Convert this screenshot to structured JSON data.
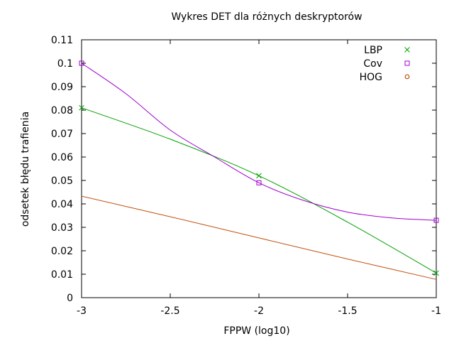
{
  "chart_data": {
    "type": "line",
    "title": "Wykres DET dla różnych deskryptorów",
    "xlabel": "FPPW (log10)",
    "ylabel": "odsetek błędu trafienia",
    "xlim": [
      -3,
      -1
    ],
    "ylim": [
      0,
      0.11
    ],
    "xticks": [
      {
        "value": -3,
        "label": "-3"
      },
      {
        "value": -2.5,
        "label": "-2.5"
      },
      {
        "value": -2,
        "label": "-2"
      },
      {
        "value": -1.5,
        "label": "-1.5"
      },
      {
        "value": -1,
        "label": "-1"
      }
    ],
    "yticks": [
      {
        "value": 0,
        "label": "0"
      },
      {
        "value": 0.01,
        "label": "0.01"
      },
      {
        "value": 0.02,
        "label": "0.02"
      },
      {
        "value": 0.03,
        "label": "0.03"
      },
      {
        "value": 0.04,
        "label": "0.04"
      },
      {
        "value": 0.05,
        "label": "0.05"
      },
      {
        "value": 0.06,
        "label": "0.06"
      },
      {
        "value": 0.07,
        "label": "0.07"
      },
      {
        "value": 0.08,
        "label": "0.08"
      },
      {
        "value": 0.09,
        "label": "0.09"
      },
      {
        "value": 0.1,
        "label": "0.1"
      },
      {
        "value": 0.11,
        "label": "0.11"
      }
    ],
    "grid": false,
    "legend": "top-right",
    "series": [
      {
        "name": "LBP",
        "color": "#00a000",
        "marker": "cross",
        "points": [
          {
            "x": -3,
            "y": 0.081
          },
          {
            "x": -2,
            "y": 0.052
          },
          {
            "x": -1,
            "y": 0.0105
          }
        ],
        "curve": [
          {
            "x": -3,
            "y": 0.081
          },
          {
            "x": -2.5,
            "y": 0.0676
          },
          {
            "x": -2,
            "y": 0.052
          },
          {
            "x": -1.5,
            "y": 0.0322
          },
          {
            "x": -1,
            "y": 0.0105
          }
        ]
      },
      {
        "name": "Cov",
        "color": "#a000d0",
        "marker": "square",
        "points": [
          {
            "x": -3,
            "y": 0.1
          },
          {
            "x": -2,
            "y": 0.049
          },
          {
            "x": -1,
            "y": 0.033
          }
        ],
        "curve": [
          {
            "x": -3,
            "y": 0.1
          },
          {
            "x": -2.75,
            "y": 0.087
          },
          {
            "x": -2.5,
            "y": 0.0715
          },
          {
            "x": -2.25,
            "y": 0.06
          },
          {
            "x": -2,
            "y": 0.049
          },
          {
            "x": -1.75,
            "y": 0.0415
          },
          {
            "x": -1.5,
            "y": 0.0365
          },
          {
            "x": -1.25,
            "y": 0.034
          },
          {
            "x": -1,
            "y": 0.033
          }
        ]
      },
      {
        "name": "HOG",
        "color": "#c05010",
        "marker": "circle",
        "points": [],
        "curve": [
          {
            "x": -3,
            "y": 0.0433
          },
          {
            "x": -2.5,
            "y": 0.0345
          },
          {
            "x": -2,
            "y": 0.0255
          },
          {
            "x": -1.5,
            "y": 0.0165
          },
          {
            "x": -1,
            "y": 0.0078
          }
        ]
      }
    ]
  }
}
